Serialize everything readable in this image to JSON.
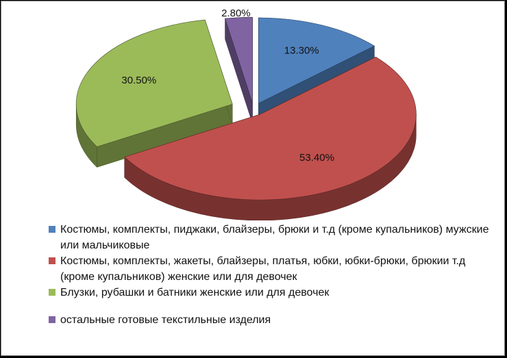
{
  "chart_data": {
    "type": "pie",
    "series": [
      {
        "label": "Костюмы, комплекты, пиджаки, блайзеры, брюки и т.д (кроме купальников) мужские или мальчиковые",
        "value": 13.3,
        "label_text": "13.30%",
        "color": "#4f81bd"
      },
      {
        "label": "Костюмы, комплекты, жакеты, блайзеры, платья, юбки, юбки-брюки, брюкии т.д (кроме купальников) женские или для девочек",
        "value": 53.4,
        "label_text": "53.40%",
        "color": "#c0504d"
      },
      {
        "label": "Блузки, рубашки и батники женские или для девочек",
        "value": 30.5,
        "label_text": "30.50%",
        "color": "#9bbb59"
      },
      {
        "label": "остальные готовые текстильные изделия",
        "value": 2.8,
        "label_text": "2.80%",
        "color": "#8064a2"
      }
    ],
    "legend_position": "bottom",
    "style": "3d-exploded"
  },
  "legend": {
    "items": [
      {
        "text": "Костюмы, комплекты, пиджаки, блайзеры, брюки и т.д (кроме купальников) мужские или мальчиковые"
      },
      {
        "text": "Костюмы, комплекты, жакеты, блайзеры, платья, юбки, юбки-брюки, брюкии т.д (кроме купальников) женские или для девочек"
      },
      {
        "text": "Блузки, рубашки и батники женские или для девочек"
      },
      {
        "text": "остальные готовые текстильные изделия"
      }
    ]
  }
}
